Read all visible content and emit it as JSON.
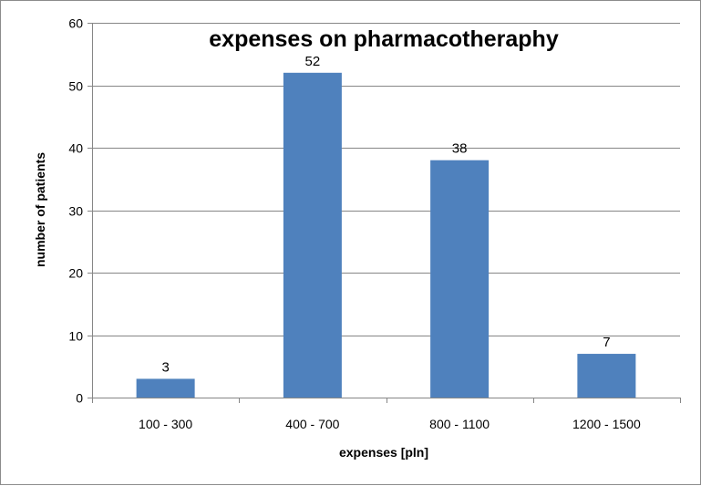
{
  "chart_data": {
    "type": "bar",
    "title": "expenses on pharmacotheraphy",
    "xlabel": "expenses [pln]",
    "ylabel": "number of patients",
    "categories": [
      "100 - 300",
      "400 - 700",
      "800 - 1100",
      "1200 - 1500"
    ],
    "values": [
      3,
      52,
      38,
      7
    ],
    "data_labels": [
      "3",
      "52",
      "38",
      "7"
    ],
    "ylim": [
      0,
      60
    ],
    "yticks": [
      0,
      10,
      20,
      30,
      40,
      50,
      60
    ],
    "ytick_labels": [
      "0",
      "10",
      "20",
      "30",
      "40",
      "50",
      "60"
    ],
    "grid": "horizontal",
    "legend": "none",
    "colors": {
      "bar": "#4f81bd",
      "grid": "#868686",
      "axis": "#868686",
      "border": "#8c8c8c"
    }
  }
}
